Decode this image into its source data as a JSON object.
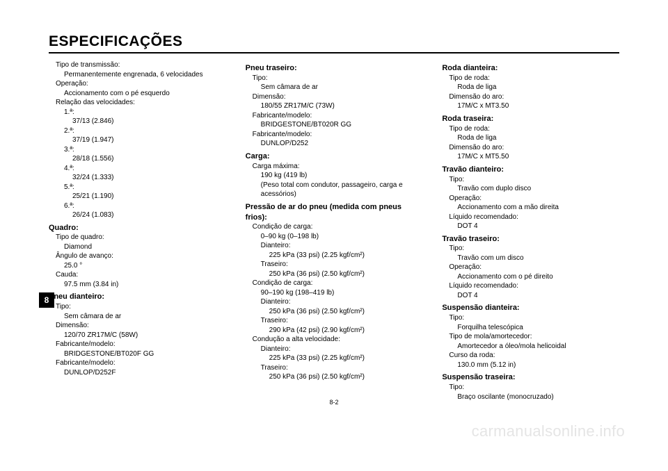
{
  "page": {
    "title": "ESPECIFICAÇÕES",
    "chapter_tab": "8",
    "page_number": "8-2",
    "watermark": "carmanualsonline.info",
    "columns": [
      {
        "lines": [
          {
            "cls": "lvl-1",
            "text": "Tipo de transmissão:"
          },
          {
            "cls": "lvl-2",
            "text": "Permanentemente engrenada, 6 velocidades"
          },
          {
            "cls": "lvl-1",
            "text": "Operação:"
          },
          {
            "cls": "lvl-2",
            "text": "Accionamento com o pé esquerdo"
          },
          {
            "cls": "lvl-1",
            "text": "Relação das velocidades:"
          },
          {
            "cls": "lvl-2",
            "text": "1.ª:"
          },
          {
            "cls": "lvl-3",
            "text": "37/13 (2.846)"
          },
          {
            "cls": "lvl-2",
            "text": "2.ª:"
          },
          {
            "cls": "lvl-3",
            "text": "37/19 (1.947)"
          },
          {
            "cls": "lvl-2",
            "text": "3.ª:"
          },
          {
            "cls": "lvl-3",
            "text": "28/18 (1.556)"
          },
          {
            "cls": "lvl-2",
            "text": "4.ª:"
          },
          {
            "cls": "lvl-3",
            "text": "32/24 (1.333)"
          },
          {
            "cls": "lvl-2",
            "text": "5.ª:"
          },
          {
            "cls": "lvl-3",
            "text": "25/21 (1.190)"
          },
          {
            "cls": "lvl-2",
            "text": "6.ª:"
          },
          {
            "cls": "lvl-3",
            "text": "26/24 (1.083)"
          },
          {
            "cls": "section-head",
            "text": "Quadro:"
          },
          {
            "cls": "lvl-1",
            "text": "Tipo de quadro:"
          },
          {
            "cls": "lvl-2",
            "text": "Diamond"
          },
          {
            "cls": "lvl-1",
            "text": "Ângulo de avanço:"
          },
          {
            "cls": "lvl-2",
            "text": "25.0 °"
          },
          {
            "cls": "lvl-1",
            "text": "Cauda:"
          },
          {
            "cls": "lvl-2",
            "text": "97.5 mm (3.84 in)"
          },
          {
            "cls": "section-head",
            "text": "Pneu dianteiro:"
          },
          {
            "cls": "lvl-1",
            "text": "Tipo:"
          },
          {
            "cls": "lvl-2",
            "text": "Sem câmara de ar"
          },
          {
            "cls": "lvl-1",
            "text": "Dimensão:"
          },
          {
            "cls": "lvl-2",
            "text": "120/70 ZR17M/C (58W)"
          },
          {
            "cls": "lvl-1",
            "text": "Fabricante/modelo:"
          },
          {
            "cls": "lvl-2",
            "text": "BRIDGESTONE/BT020F GG"
          },
          {
            "cls": "lvl-1",
            "text": "Fabricante/modelo:"
          },
          {
            "cls": "lvl-2",
            "text": "DUNLOP/D252F"
          }
        ]
      },
      {
        "lines": [
          {
            "cls": "section-head",
            "text": "Pneu traseiro:"
          },
          {
            "cls": "lvl-1",
            "text": "Tipo:"
          },
          {
            "cls": "lvl-2",
            "text": "Sem câmara de ar"
          },
          {
            "cls": "lvl-1",
            "text": "Dimensão:"
          },
          {
            "cls": "lvl-2",
            "text": "180/55 ZR17M/C (73W)"
          },
          {
            "cls": "lvl-1",
            "text": "Fabricante/modelo:"
          },
          {
            "cls": "lvl-2",
            "text": "BRIDGESTONE/BT020R GG"
          },
          {
            "cls": "lvl-1",
            "text": "Fabricante/modelo:"
          },
          {
            "cls": "lvl-2",
            "text": "DUNLOP/D252"
          },
          {
            "cls": "section-head",
            "text": "Carga:"
          },
          {
            "cls": "lvl-1",
            "text": "Carga máxima:"
          },
          {
            "cls": "lvl-2",
            "text": "190 kg (419 lb)"
          },
          {
            "cls": "lvl-2",
            "text": "(Peso total com condutor, passageiro, carga e acessórios)"
          },
          {
            "cls": "section-head",
            "text": "Pressão de ar do pneu (medida com pneus frios):"
          },
          {
            "cls": "lvl-1",
            "text": "Condição de carga:"
          },
          {
            "cls": "lvl-2",
            "text": "0–90 kg (0–198 lb)"
          },
          {
            "cls": "lvl-2",
            "text": "Dianteiro:"
          },
          {
            "cls": "lvl-3",
            "text": "225 kPa (33 psi) (2.25 kgf/cm²)"
          },
          {
            "cls": "lvl-2",
            "text": "Traseiro:"
          },
          {
            "cls": "lvl-3",
            "text": "250 kPa (36 psi) (2.50 kgf/cm²)"
          },
          {
            "cls": "lvl-1",
            "text": "Condição de carga:"
          },
          {
            "cls": "lvl-2",
            "text": "90–190 kg (198–419 lb)"
          },
          {
            "cls": "lvl-2",
            "text": "Dianteiro:"
          },
          {
            "cls": "lvl-3",
            "text": "250 kPa (36 psi) (2.50 kgf/cm²)"
          },
          {
            "cls": "lvl-2",
            "text": "Traseiro:"
          },
          {
            "cls": "lvl-3",
            "text": "290 kPa (42 psi) (2.90 kgf/cm²)"
          },
          {
            "cls": "lvl-1",
            "text": "Condução a alta velocidade:"
          },
          {
            "cls": "lvl-2",
            "text": "Dianteiro:"
          },
          {
            "cls": "lvl-3",
            "text": "225 kPa (33 psi) (2.25 kgf/cm²)"
          },
          {
            "cls": "lvl-2",
            "text": "Traseiro:"
          },
          {
            "cls": "lvl-3",
            "text": "250 kPa (36 psi) (2.50 kgf/cm²)"
          }
        ]
      },
      {
        "lines": [
          {
            "cls": "section-head",
            "text": "Roda dianteira:"
          },
          {
            "cls": "lvl-1",
            "text": "Tipo de roda:"
          },
          {
            "cls": "lvl-2",
            "text": "Roda de liga"
          },
          {
            "cls": "lvl-1",
            "text": "Dimensão do aro:"
          },
          {
            "cls": "lvl-2",
            "text": "17M/C x MT3.50"
          },
          {
            "cls": "section-head",
            "text": "Roda traseira:"
          },
          {
            "cls": "lvl-1",
            "text": "Tipo de roda:"
          },
          {
            "cls": "lvl-2",
            "text": "Roda de liga"
          },
          {
            "cls": "lvl-1",
            "text": "Dimensão do aro:"
          },
          {
            "cls": "lvl-2",
            "text": "17M/C x MT5.50"
          },
          {
            "cls": "section-head",
            "text": "Travão dianteiro:"
          },
          {
            "cls": "lvl-1",
            "text": "Tipo:"
          },
          {
            "cls": "lvl-2",
            "text": "Travão com duplo disco"
          },
          {
            "cls": "lvl-1",
            "text": "Operação:"
          },
          {
            "cls": "lvl-2",
            "text": "Accionamento com a mão direita"
          },
          {
            "cls": "lvl-1",
            "text": "Líquido recomendado:"
          },
          {
            "cls": "lvl-2",
            "text": "DOT 4"
          },
          {
            "cls": "section-head",
            "text": "Travão traseiro:"
          },
          {
            "cls": "lvl-1",
            "text": "Tipo:"
          },
          {
            "cls": "lvl-2",
            "text": "Travão com um disco"
          },
          {
            "cls": "lvl-1",
            "text": "Operação:"
          },
          {
            "cls": "lvl-2",
            "text": "Accionamento com o pé direito"
          },
          {
            "cls": "lvl-1",
            "text": "Líquido recomendado:"
          },
          {
            "cls": "lvl-2",
            "text": "DOT 4"
          },
          {
            "cls": "section-head",
            "text": "Suspensão dianteira:"
          },
          {
            "cls": "lvl-1",
            "text": "Tipo:"
          },
          {
            "cls": "lvl-2",
            "text": "Forquilha telescópica"
          },
          {
            "cls": "lvl-1",
            "text": "Tipo de mola/amortecedor:"
          },
          {
            "cls": "lvl-2",
            "text": "Amortecedor a óleo/mola helicoidal"
          },
          {
            "cls": "lvl-1",
            "text": "Curso da roda:"
          },
          {
            "cls": "lvl-2",
            "text": "130.0 mm (5.12 in)"
          },
          {
            "cls": "section-head",
            "text": "Suspensão traseira:"
          },
          {
            "cls": "lvl-1",
            "text": "Tipo:"
          },
          {
            "cls": "lvl-2",
            "text": "Braço oscilante (monocruzado)"
          }
        ]
      }
    ]
  }
}
